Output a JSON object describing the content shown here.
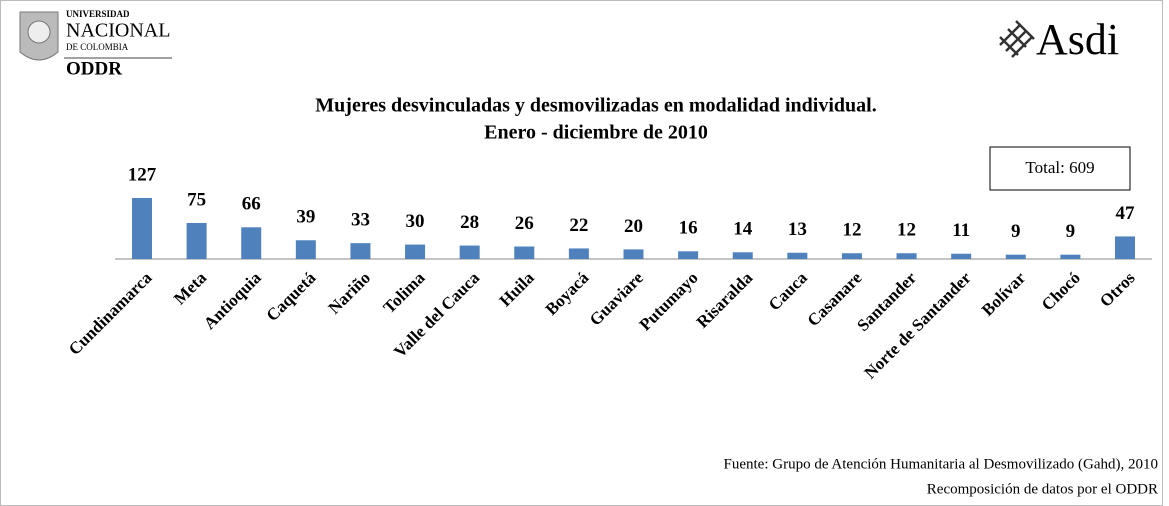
{
  "chart_data": {
    "type": "bar",
    "title": "Mujeres desvinculadas y desmovilizadas en modalidad individual.",
    "subtitle": "Enero - diciembre de 2010",
    "annotation": "Total: 609",
    "source": [
      "Fuente: Grupo de Atención Humanitaria al Desmovilizado (Gahd), 2010",
      "Recomposición de datos por el ODDR"
    ],
    "logos": {
      "university": [
        "UNIVERSIDAD",
        "NACIONAL",
        "DE COLOMBIA",
        "ODDR"
      ],
      "sponsor": "Asdi"
    },
    "categories": [
      "Cundinamarca",
      "Meta",
      "Antioquia",
      "Caquetá",
      "Nariño",
      "Tolima",
      "Valle del Cauca",
      "Huila",
      "Boyacá",
      "Guaviare",
      "Putumayo",
      "Risaralda",
      "Cauca",
      "Casanare",
      "Santander",
      "Norte de Santander",
      "Bolívar",
      "Chocó",
      "Otros"
    ],
    "values": [
      127,
      75,
      66,
      39,
      33,
      30,
      28,
      26,
      22,
      20,
      16,
      14,
      13,
      12,
      12,
      11,
      9,
      9,
      47
    ],
    "color": "#4f81bd"
  }
}
